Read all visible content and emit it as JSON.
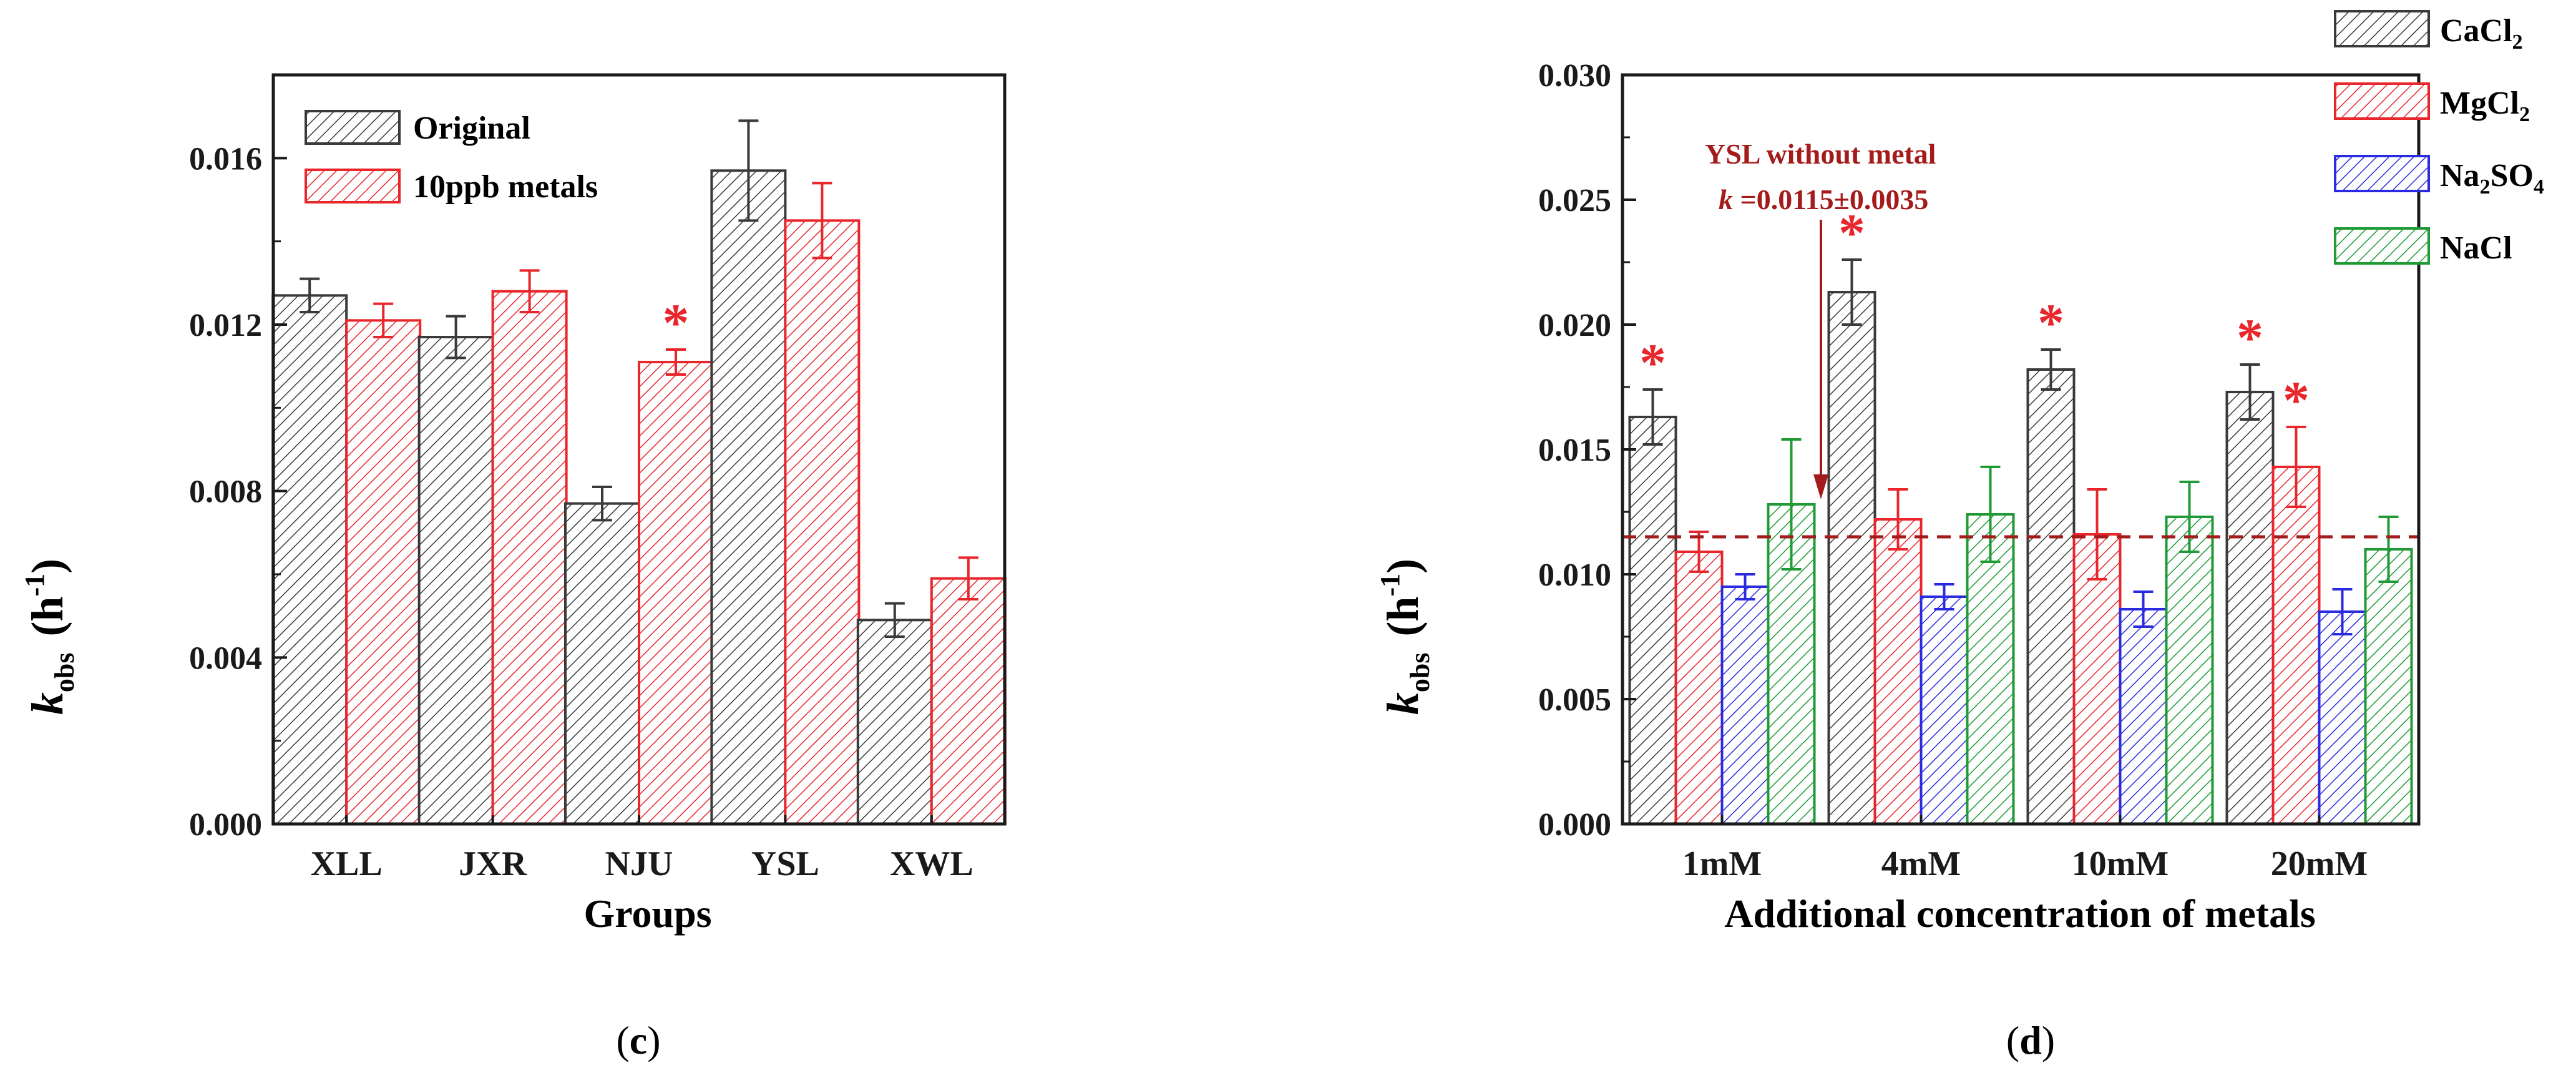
{
  "colors": {
    "original": "#3a3a3a",
    "metals": "#e8262c",
    "cacl2": "#3a3a3a",
    "mgcl2": "#e8262c",
    "na2so4": "#2a2ae0",
    "nacl": "#1f9a34",
    "star": "#e8262c",
    "baseline": "#a31b1b",
    "axis": "#1a1a1a"
  },
  "panel_labels": {
    "c": {
      "open": "(",
      "letter": "c",
      "close": ")"
    },
    "d": {
      "open": "(",
      "letter": "d",
      "close": ")"
    }
  },
  "chart_data": [
    {
      "id": "c",
      "type": "bar",
      "title": "",
      "xlabel": "Groups",
      "ylabel_main": "k",
      "ylabel_sub": "obs",
      "ylabel_unit": "(h",
      "ylabel_sup": "-1",
      "ylabel_close": ")",
      "ylim": [
        0,
        0.018
      ],
      "yticks": [
        0.0,
        0.004,
        0.008,
        0.012,
        0.016
      ],
      "ytick_labels": [
        "0.000",
        "0.004",
        "0.008",
        "0.012",
        "0.016"
      ],
      "categories": [
        "XLL",
        "JXR",
        "NJU",
        "YSL",
        "XWL"
      ],
      "series": [
        {
          "name": "Original",
          "color_key": "original",
          "values": [
            0.0127,
            0.0117,
            0.0077,
            0.0157,
            0.0049
          ],
          "errors": [
            0.0004,
            0.0005,
            0.0004,
            0.0012,
            0.0004
          ]
        },
        {
          "name": "10ppb metals",
          "color_key": "metals",
          "values": [
            0.0121,
            0.0128,
            0.0111,
            0.0145,
            0.0059
          ],
          "errors": [
            0.0004,
            0.0005,
            0.0003,
            0.0009,
            0.0005
          ]
        }
      ],
      "significance": [
        {
          "category": "NJU",
          "series": "10ppb metals",
          "symbol": "*"
        }
      ],
      "legend_position": "top-left"
    },
    {
      "id": "d",
      "type": "bar",
      "title": "",
      "xlabel": "Additional concentration of metals",
      "ylabel_main": "k",
      "ylabel_sub": "obs",
      "ylabel_unit": "(h",
      "ylabel_sup": "-1",
      "ylabel_close": ")",
      "ylim": [
        0,
        0.03
      ],
      "yticks": [
        0.0,
        0.005,
        0.01,
        0.015,
        0.02,
        0.025,
        0.03
      ],
      "ytick_labels": [
        "0.000",
        "0.005",
        "0.010",
        "0.015",
        "0.020",
        "0.025",
        "0.030"
      ],
      "categories": [
        "1mM",
        "4mM",
        "10mM",
        "20mM"
      ],
      "series": [
        {
          "name_main": "CaCl",
          "name_sub": "2",
          "name_tail": "",
          "color_key": "cacl2",
          "values": [
            0.0163,
            0.0213,
            0.0182,
            0.0173
          ],
          "errors": [
            0.0011,
            0.0013,
            0.0008,
            0.0011
          ]
        },
        {
          "name_main": "MgCl",
          "name_sub": "2",
          "name_tail": "",
          "color_key": "mgcl2",
          "values": [
            0.0109,
            0.0122,
            0.0116,
            0.0143
          ],
          "errors": [
            0.0008,
            0.0012,
            0.0018,
            0.0016
          ]
        },
        {
          "name_main": "Na",
          "name_sub": "2",
          "name_tail": "SO",
          "name_sub2": "4",
          "color_key": "na2so4",
          "values": [
            0.0095,
            0.0091,
            0.0086,
            0.0085
          ],
          "errors": [
            0.0005,
            0.0005,
            0.0007,
            0.0009
          ]
        },
        {
          "name_main": "NaCl",
          "name_sub": "",
          "name_tail": "",
          "color_key": "nacl",
          "values": [
            0.0128,
            0.0124,
            0.0123,
            0.011
          ],
          "errors": [
            0.0026,
            0.0019,
            0.0014,
            0.0013
          ]
        }
      ],
      "significance": [
        {
          "category": "1mM",
          "series_index": 0,
          "symbol": "*"
        },
        {
          "category": "4mM",
          "series_index": 0,
          "symbol": "*"
        },
        {
          "category": "10mM",
          "series_index": 0,
          "symbol": "*"
        },
        {
          "category": "20mM",
          "series_index": 0,
          "symbol": "*"
        },
        {
          "category": "20mM",
          "series_index": 1,
          "symbol": "*"
        }
      ],
      "reference_line": {
        "value": 0.0115,
        "label_line1": "YSL without metal",
        "label_line2_k": "k",
        "label_line2_rest": " =0.0115±0.0035"
      },
      "legend_position": "top-right"
    }
  ]
}
